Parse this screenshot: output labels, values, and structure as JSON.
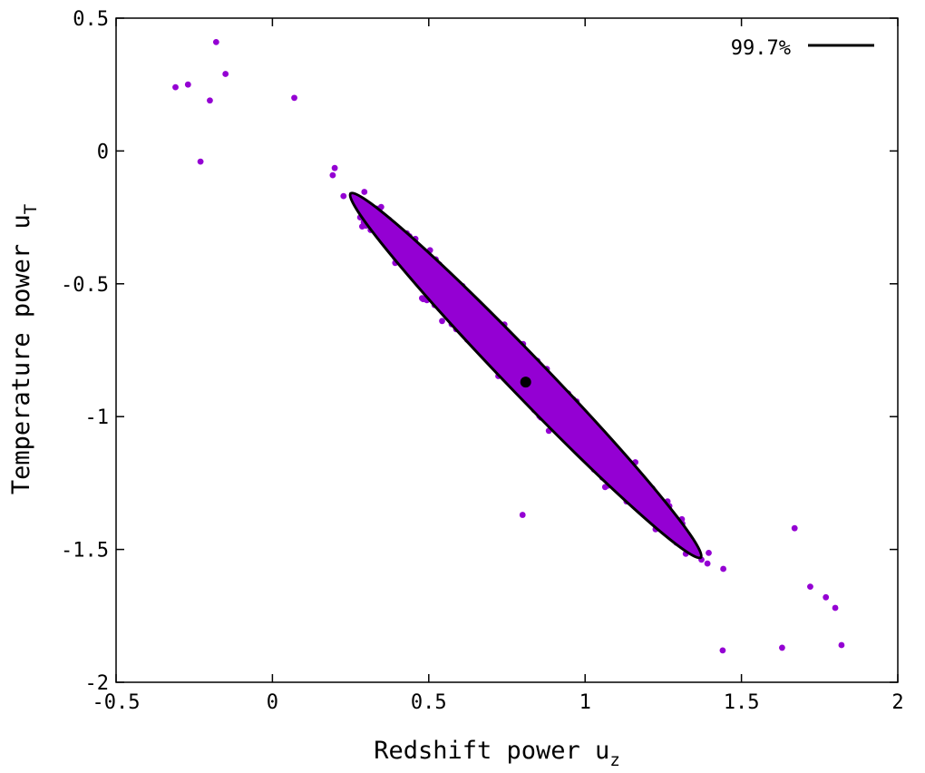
{
  "chart_data": {
    "type": "scatter",
    "title": "",
    "xlabel": "Redshift power u",
    "xlabel_sub": "z",
    "ylabel": "Temperature power u",
    "ylabel_sub": "T",
    "xlim": [
      -0.5,
      2
    ],
    "ylim": [
      -2,
      0.5
    ],
    "x_ticks": [
      -0.5,
      0,
      0.5,
      1,
      1.5,
      2
    ],
    "x_tick_labels": [
      "-0.5",
      "0",
      "0.5",
      "1",
      "1.5",
      "2"
    ],
    "y_ticks": [
      -2,
      -1.5,
      -1,
      -0.5,
      0,
      0.5
    ],
    "y_tick_labels": [
      "-2",
      "-1.5",
      "-1",
      "-0.5",
      "0",
      "0.5"
    ],
    "grid": false,
    "legend": {
      "position": "top-right",
      "entries": [
        {
          "label": "99.7%",
          "style": "line",
          "color": "#000000"
        }
      ]
    },
    "point_color": "#9400D3",
    "center": {
      "x": 0.81,
      "y": -0.87,
      "color": "#000000"
    },
    "ellipse": {
      "label": "99.7%",
      "center_x": 0.81,
      "center_y": -0.845,
      "endpoint_upper": [
        0.25,
        -0.16
      ],
      "endpoint_lower": [
        1.37,
        -1.53
      ],
      "minor_half_width": 0.062,
      "fill": "#9400D3",
      "stroke": "#000000"
    },
    "scatter_extent_points": [
      {
        "x": -0.18,
        "y": 0.41
      },
      {
        "x": -0.31,
        "y": 0.24
      },
      {
        "x": -0.27,
        "y": 0.25
      },
      {
        "x": -0.15,
        "y": 0.29
      },
      {
        "x": -0.2,
        "y": 0.19
      },
      {
        "x": -0.23,
        "y": -0.04
      },
      {
        "x": 0.07,
        "y": 0.2
      },
      {
        "x": 1.82,
        "y": -1.86
      },
      {
        "x": 1.8,
        "y": -1.72
      },
      {
        "x": 1.77,
        "y": -1.68
      },
      {
        "x": 1.72,
        "y": -1.64
      },
      {
        "x": 1.67,
        "y": -1.42
      },
      {
        "x": 1.63,
        "y": -1.87
      },
      {
        "x": 1.44,
        "y": -1.88
      },
      {
        "x": 0.8,
        "y": -1.37
      }
    ]
  }
}
